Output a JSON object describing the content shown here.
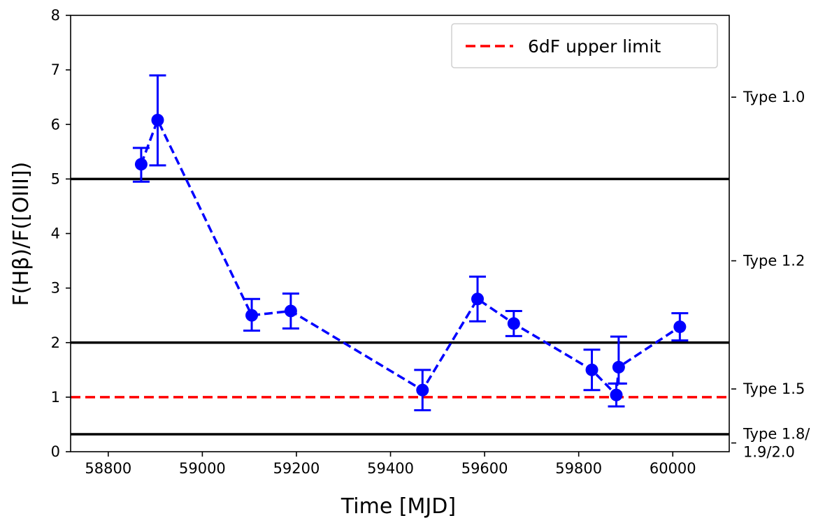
{
  "chart_data": {
    "type": "scatter",
    "title": "",
    "xlabel": "Time [MJD]",
    "ylabel": "F(Hβ)/F([OIII])",
    "xlim": [
      58720,
      60120
    ],
    "ylim": [
      0,
      8
    ],
    "grid": false,
    "x_ticks": [
      58800,
      59000,
      59200,
      59400,
      59600,
      59800,
      60000
    ],
    "y_ticks": [
      0,
      1,
      2,
      3,
      4,
      5,
      6,
      7,
      8
    ],
    "series": [
      {
        "name": "F(Hβ)/F([OIII])",
        "color": "#0000ff",
        "style": "dashed line with markers and error bars",
        "points": [
          {
            "x": 58870,
            "y": 5.27,
            "err_low": 0.32,
            "err_high": 0.3
          },
          {
            "x": 58905,
            "y": 6.08,
            "err_low": 0.83,
            "err_high": 0.82
          },
          {
            "x": 59105,
            "y": 2.5,
            "err_low": 0.28,
            "err_high": 0.3
          },
          {
            "x": 59188,
            "y": 2.58,
            "err_low": 0.32,
            "err_high": 0.32
          },
          {
            "x": 59468,
            "y": 1.13,
            "err_low": 0.37,
            "err_high": 0.37
          },
          {
            "x": 59585,
            "y": 2.8,
            "err_low": 0.41,
            "err_high": 0.41
          },
          {
            "x": 59662,
            "y": 2.35,
            "err_low": 0.23,
            "err_high": 0.23
          },
          {
            "x": 59828,
            "y": 1.5,
            "err_low": 0.37,
            "err_high": 0.37
          },
          {
            "x": 59880,
            "y": 1.04,
            "err_low": 0.21,
            "err_high": 0.21
          },
          {
            "x": 59885,
            "y": 1.55,
            "err_low": 0.3,
            "err_high": 0.56
          },
          {
            "x": 60015,
            "y": 2.29,
            "err_low": 0.25,
            "err_high": 0.25
          }
        ]
      }
    ],
    "hlines": [
      {
        "y": 5.0,
        "color": "#000000",
        "style": "solid"
      },
      {
        "y": 2.0,
        "color": "#000000",
        "style": "solid"
      },
      {
        "y": 0.32,
        "color": "#000000",
        "style": "solid"
      },
      {
        "y": 1.0,
        "color": "#ff0000",
        "style": "dashed",
        "label": "6dF upper limit"
      }
    ],
    "legend": {
      "position": "top-right",
      "entries": [
        {
          "label": "6dF upper limit",
          "color": "#ff0000",
          "style": "dashed"
        }
      ]
    },
    "secondary_y_labels": [
      {
        "y": 6.5,
        "lines": [
          "Type 1.0"
        ]
      },
      {
        "y": 3.5,
        "lines": [
          "Type 1.2"
        ]
      },
      {
        "y": 1.15,
        "lines": [
          "Type 1.5"
        ]
      },
      {
        "y": 0.16,
        "lines": [
          "Type 1.8/",
          "1.9/2.0"
        ]
      }
    ]
  }
}
